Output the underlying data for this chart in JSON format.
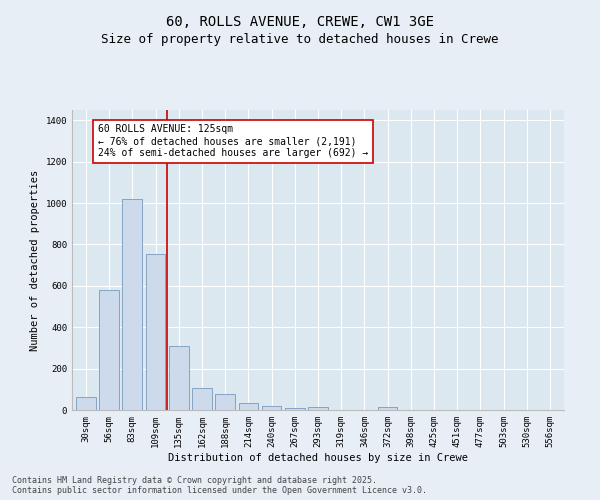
{
  "title_line1": "60, ROLLS AVENUE, CREWE, CW1 3GE",
  "title_line2": "Size of property relative to detached houses in Crewe",
  "xlabel": "Distribution of detached houses by size in Crewe",
  "ylabel": "Number of detached properties",
  "categories": [
    "30sqm",
    "56sqm",
    "83sqm",
    "109sqm",
    "135sqm",
    "162sqm",
    "188sqm",
    "214sqm",
    "240sqm",
    "267sqm",
    "293sqm",
    "319sqm",
    "346sqm",
    "372sqm",
    "398sqm",
    "425sqm",
    "451sqm",
    "477sqm",
    "503sqm",
    "530sqm",
    "556sqm"
  ],
  "values": [
    65,
    580,
    1020,
    755,
    310,
    105,
    75,
    35,
    20,
    10,
    15,
    0,
    0,
    15,
    0,
    0,
    0,
    0,
    0,
    0,
    0
  ],
  "bar_color": "#ccdaeb",
  "bar_edge_color": "#7799bb",
  "vline_x": 3.5,
  "vline_color": "#cc0000",
  "annotation_text_line1": "60 ROLLS AVENUE: 125sqm",
  "annotation_text_line2": "← 76% of detached houses are smaller (2,191)",
  "annotation_text_line3": "24% of semi-detached houses are larger (692) →",
  "ylim": [
    0,
    1450
  ],
  "yticks": [
    0,
    200,
    400,
    600,
    800,
    1000,
    1200,
    1400
  ],
  "bg_color": "#e8eef5",
  "plot_bg_color": "#dce8f0",
  "footer_line1": "Contains HM Land Registry data © Crown copyright and database right 2025.",
  "footer_line2": "Contains public sector information licensed under the Open Government Licence v3.0.",
  "title_fontsize": 10,
  "subtitle_fontsize": 9,
  "axis_label_fontsize": 7.5,
  "tick_fontsize": 6.5,
  "annotation_fontsize": 7,
  "footer_fontsize": 6
}
